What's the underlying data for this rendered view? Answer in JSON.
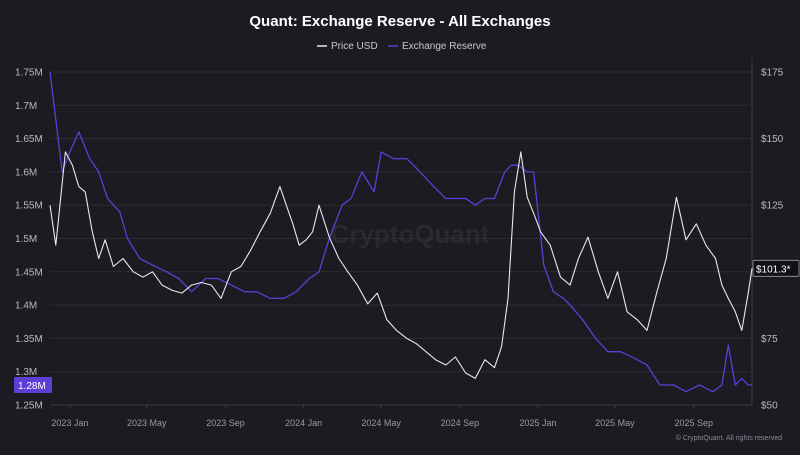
{
  "chart_data": {
    "type": "line",
    "title": "Quant: Exchange Reserve - All Exchanges",
    "legend": [
      "Price USD",
      "Exchange Reserve"
    ],
    "legend_position": "top-center",
    "grid": true,
    "x_ticks": [
      "2023 Jan",
      "2023 May",
      "2023 Sep",
      "2024 Jan",
      "2024 May",
      "2024 Sep",
      "2025 Jan",
      "2025 May",
      "2025 Sep"
    ],
    "x_range": [
      "2022-12-01",
      "2025-12-01"
    ],
    "y_left": {
      "ticks": [
        "1.75M",
        "1.7M",
        "1.65M",
        "1.6M",
        "1.55M",
        "1.5M",
        "1.45M",
        "1.4M",
        "1.35M",
        "1.3M",
        "1.25M"
      ],
      "range": [
        1250000,
        1750000
      ]
    },
    "y_right": {
      "ticks": [
        "$175",
        "$150",
        "$125",
        "$100",
        "$75",
        "$50"
      ],
      "range": [
        50,
        175
      ]
    },
    "current_labels": {
      "reserve": "1.28M",
      "price": "$101.3*"
    },
    "series": [
      {
        "name": "Exchange Reserve",
        "axis": "left",
        "color": "#5b3fd6",
        "x": [
          "2022-12-01",
          "2022-12-20",
          "2023-01-01",
          "2023-01-15",
          "2023-02-01",
          "2023-02-15",
          "2023-03-01",
          "2023-03-20",
          "2023-04-01",
          "2023-04-20",
          "2023-05-10",
          "2023-06-01",
          "2023-06-20",
          "2023-07-10",
          "2023-08-01",
          "2023-08-20",
          "2023-09-10",
          "2023-10-01",
          "2023-10-20",
          "2023-11-10",
          "2023-12-01",
          "2023-12-20",
          "2024-01-10",
          "2024-01-25",
          "2024-02-10",
          "2024-03-01",
          "2024-03-15",
          "2024-04-01",
          "2024-04-20",
          "2024-05-01",
          "2024-05-20",
          "2024-06-10",
          "2024-07-01",
          "2024-07-20",
          "2024-08-10",
          "2024-08-25",
          "2024-09-10",
          "2024-09-25",
          "2024-10-10",
          "2024-10-25",
          "2024-11-10",
          "2024-11-20",
          "2024-12-01",
          "2024-12-15",
          "2024-12-25",
          "2025-01-10",
          "2025-01-25",
          "2025-02-10",
          "2025-02-20",
          "2025-03-10",
          "2025-04-01",
          "2025-04-20",
          "2025-05-10",
          "2025-06-01",
          "2025-06-20",
          "2025-07-10",
          "2025-08-01",
          "2025-08-20",
          "2025-09-10",
          "2025-10-01",
          "2025-10-15",
          "2025-10-25",
          "2025-11-05",
          "2025-11-15",
          "2025-11-25",
          "2025-12-01"
        ],
        "values": [
          1750000,
          1600000,
          1630000,
          1660000,
          1620000,
          1600000,
          1560000,
          1540000,
          1500000,
          1470000,
          1460000,
          1450000,
          1440000,
          1420000,
          1440000,
          1440000,
          1430000,
          1420000,
          1420000,
          1410000,
          1410000,
          1420000,
          1440000,
          1450000,
          1500000,
          1550000,
          1560000,
          1600000,
          1570000,
          1630000,
          1620000,
          1620000,
          1600000,
          1580000,
          1560000,
          1560000,
          1560000,
          1550000,
          1560000,
          1560000,
          1600000,
          1610000,
          1610000,
          1600000,
          1600000,
          1460000,
          1420000,
          1410000,
          1400000,
          1380000,
          1350000,
          1330000,
          1330000,
          1320000,
          1310000,
          1280000,
          1280000,
          1270000,
          1280000,
          1270000,
          1280000,
          1340000,
          1280000,
          1290000,
          1280000,
          1280000
        ]
      },
      {
        "name": "Price USD",
        "axis": "right",
        "color": "#e8e8ee",
        "x": [
          "2022-12-01",
          "2022-12-10",
          "2022-12-25",
          "2023-01-05",
          "2023-01-15",
          "2023-01-25",
          "2023-02-05",
          "2023-02-15",
          "2023-02-25",
          "2023-03-10",
          "2023-03-25",
          "2023-04-10",
          "2023-04-25",
          "2023-05-10",
          "2023-05-25",
          "2023-06-10",
          "2023-06-25",
          "2023-07-10",
          "2023-07-25",
          "2023-08-10",
          "2023-08-25",
          "2023-09-10",
          "2023-09-25",
          "2023-10-10",
          "2023-10-25",
          "2023-11-10",
          "2023-11-25",
          "2023-12-05",
          "2023-12-15",
          "2023-12-25",
          "2024-01-05",
          "2024-01-15",
          "2024-01-25",
          "2024-02-10",
          "2024-02-25",
          "2024-03-10",
          "2024-03-25",
          "2024-04-10",
          "2024-04-25",
          "2024-05-10",
          "2024-05-25",
          "2024-06-10",
          "2024-06-25",
          "2024-07-10",
          "2024-07-25",
          "2024-08-10",
          "2024-08-25",
          "2024-09-10",
          "2024-09-25",
          "2024-10-10",
          "2024-10-25",
          "2024-11-05",
          "2024-11-15",
          "2024-11-25",
          "2024-12-05",
          "2024-12-15",
          "2024-12-25",
          "2025-01-05",
          "2025-01-20",
          "2025-02-05",
          "2025-02-20",
          "2025-03-05",
          "2025-03-20",
          "2025-04-05",
          "2025-04-20",
          "2025-05-05",
          "2025-05-20",
          "2025-06-05",
          "2025-06-20",
          "2025-07-05",
          "2025-07-20",
          "2025-08-05",
          "2025-08-20",
          "2025-09-05",
          "2025-09-20",
          "2025-10-05",
          "2025-10-15",
          "2025-10-25",
          "2025-11-05",
          "2025-11-15",
          "2025-11-25",
          "2025-12-01"
        ],
        "values": [
          125,
          110,
          145,
          140,
          132,
          130,
          115,
          105,
          112,
          102,
          105,
          100,
          98,
          100,
          95,
          93,
          92,
          95,
          96,
          95,
          90,
          100,
          102,
          108,
          115,
          122,
          132,
          125,
          118,
          110,
          112,
          115,
          125,
          113,
          105,
          100,
          95,
          88,
          92,
          82,
          78,
          75,
          73,
          70,
          67,
          65,
          68,
          62,
          60,
          67,
          64,
          72,
          90,
          130,
          145,
          128,
          122,
          115,
          110,
          98,
          95,
          105,
          113,
          100,
          90,
          100,
          85,
          82,
          78,
          92,
          105,
          128,
          112,
          118,
          110,
          105,
          95,
          90,
          85,
          78,
          92,
          101.3
        ]
      }
    ]
  },
  "watermark": "CryptoQuant",
  "copyright": "© CryptoQuant. All rights reserved"
}
